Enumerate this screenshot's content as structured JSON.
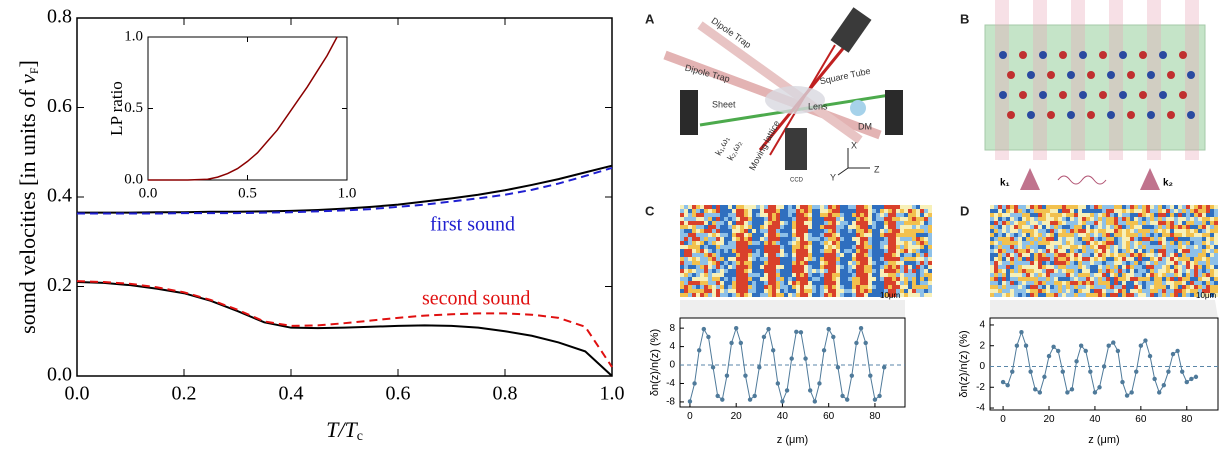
{
  "chart_data": [
    {
      "type": "line",
      "xlabel_parts": [
        "T/T",
        "c"
      ],
      "ylabel_parts": [
        "sound velocities [in units of ",
        "v",
        "F",
        "]"
      ],
      "x": [
        0,
        0.05,
        0.1,
        0.15,
        0.2,
        0.25,
        0.3,
        0.35,
        0.4,
        0.45,
        0.5,
        0.55,
        0.6,
        0.65,
        0.7,
        0.75,
        0.8,
        0.85,
        0.9,
        0.95,
        1.0
      ],
      "series": [
        {
          "color": "#000000",
          "dash": false,
          "values": [
            0.365,
            0.365,
            0.365,
            0.366,
            0.366,
            0.367,
            0.367,
            0.368,
            0.369,
            0.371,
            0.374,
            0.378,
            0.383,
            0.39,
            0.397,
            0.405,
            0.415,
            0.427,
            0.44,
            0.455,
            0.47
          ]
        },
        {
          "color": "#1f1fd0",
          "dash": true,
          "values": [
            0.363,
            0.363,
            0.363,
            0.363,
            0.364,
            0.364,
            0.364,
            0.365,
            0.366,
            0.368,
            0.37,
            0.373,
            0.378,
            0.383,
            0.39,
            0.397,
            0.405,
            0.416,
            0.43,
            0.447,
            0.465
          ]
        },
        {
          "color": "#000000",
          "dash": false,
          "values": [
            0.21,
            0.208,
            0.203,
            0.195,
            0.185,
            0.168,
            0.145,
            0.12,
            0.108,
            0.107,
            0.108,
            0.11,
            0.112,
            0.113,
            0.112,
            0.108,
            0.1,
            0.09,
            0.075,
            0.055,
            0.0
          ]
        },
        {
          "color": "#e01010",
          "dash": true,
          "values": [
            0.212,
            0.21,
            0.206,
            0.198,
            0.187,
            0.17,
            0.148,
            0.122,
            0.112,
            0.113,
            0.118,
            0.124,
            0.13,
            0.135,
            0.138,
            0.14,
            0.14,
            0.137,
            0.13,
            0.11,
            0.02
          ]
        }
      ],
      "annotations": [
        {
          "text": "first sound",
          "color": "#1f1fd0"
        },
        {
          "text": "second sound",
          "color": "#e01010"
        }
      ],
      "xlim": [
        0,
        1.0
      ],
      "xticks": [
        {
          "value": 0,
          "label": "0.0"
        },
        0.2,
        0.4,
        0.6,
        0.8,
        {
          "value": 1.0,
          "label": "1.0"
        }
      ],
      "ylim": [
        0,
        0.8
      ],
      "yticks": [
        {
          "value": 0,
          "label": "0.0"
        },
        0.2,
        0.4,
        0.6,
        0.8
      ]
    },
    {
      "type": "line",
      "ylabel": "LP ratio",
      "x": [
        0,
        0.1,
        0.2,
        0.3,
        0.35,
        0.4,
        0.45,
        0.5,
        0.55,
        0.6,
        0.65,
        0.7,
        0.75,
        0.8,
        0.85,
        0.9,
        0.95
      ],
      "series": [
        {
          "color": "#8b0000",
          "dash": false,
          "values": [
            0,
            0,
            0,
            0.005,
            0.02,
            0.045,
            0.08,
            0.13,
            0.19,
            0.27,
            0.35,
            0.45,
            0.55,
            0.65,
            0.76,
            0.87,
            1.0
          ]
        }
      ],
      "xlim": [
        0,
        1.0
      ],
      "xticks": [
        {
          "value": 0,
          "label": "0.0"
        },
        0.5,
        {
          "value": 1.0,
          "label": "1.0"
        }
      ],
      "ylim": [
        0,
        1.0
      ],
      "yticks": [
        {
          "value": 0,
          "label": "0.0"
        },
        0.5,
        {
          "value": 1.0,
          "label": "1.0"
        }
      ]
    },
    {
      "type": "line",
      "panel": "C",
      "xlabel": "z (μm)",
      "ylabel": "δn(z)/n(z) (%)",
      "markers": true,
      "zero_line": true,
      "x": [
        0,
        2,
        4,
        6,
        8,
        10,
        12,
        14,
        16,
        18,
        20,
        22,
        24,
        26,
        28,
        30,
        32,
        34,
        36,
        38,
        40,
        42,
        44,
        46,
        48,
        50,
        52,
        54,
        56,
        58,
        60,
        62,
        64,
        66,
        68,
        70,
        72,
        74,
        76,
        78,
        80,
        82,
        84
      ],
      "series": [
        {
          "color": "#4f7a9a",
          "dash": false,
          "values": [
            -7.9,
            -4.0,
            3.2,
            7.8,
            6.1,
            -0.5,
            -6.7,
            -7.5,
            -2.3,
            4.8,
            8.0,
            4.8,
            -2.3,
            -7.5,
            -6.7,
            -0.5,
            6.1,
            7.8,
            3.2,
            -4.0,
            -7.9,
            -5.5,
            1.4,
            7.2,
            7.1,
            1.4,
            -5.5,
            -7.9,
            -4.0,
            3.2,
            7.8,
            6.1,
            -0.5,
            -6.7,
            -7.5,
            -2.3,
            4.8,
            8.0,
            4.8,
            -2.3,
            -7.5,
            -6.7,
            -0.5
          ]
        }
      ],
      "xlim": [
        -4.3,
        93
      ],
      "xticks": [
        0,
        20,
        40,
        60,
        80
      ],
      "ylim": [
        -9.1,
        10.2
      ],
      "yticks": [
        -8,
        -4,
        0,
        4,
        8
      ]
    },
    {
      "type": "line",
      "panel": "D",
      "xlabel": "z (μm)",
      "ylabel": "δn(z)/n(z) (%)",
      "markers": true,
      "zero_line": true,
      "x": [
        0,
        2,
        4,
        6,
        8,
        10,
        12,
        14,
        16,
        18,
        20,
        22,
        24,
        26,
        28,
        30,
        32,
        34,
        36,
        38,
        40,
        42,
        44,
        46,
        48,
        50,
        52,
        54,
        56,
        58,
        60,
        62,
        64,
        66,
        68,
        70,
        72,
        74,
        76,
        78,
        80,
        82,
        84
      ],
      "series": [
        {
          "color": "#4f7a9a",
          "dash": false,
          "values": [
            -1.5,
            -1.8,
            -0.5,
            2.0,
            3.3,
            2.0,
            -0.5,
            -2.2,
            -2.5,
            -1.0,
            1.0,
            1.9,
            1.5,
            -0.5,
            -2.5,
            -2.2,
            0.5,
            2.0,
            1.5,
            -0.5,
            -2.5,
            -2.0,
            0.0,
            2.0,
            2.3,
            1.5,
            -1.5,
            -2.8,
            -2.5,
            -0.5,
            2.0,
            2.5,
            1.0,
            -1.2,
            -2.5,
            -1.8,
            -0.5,
            1.2,
            1.5,
            -0.5,
            -1.5,
            -1.2,
            -1.0
          ]
        }
      ],
      "xlim": [
        -5.7,
        93.6
      ],
      "xticks": [
        0,
        20,
        40,
        60,
        80
      ],
      "ylim": [
        -4.19,
        4.67
      ],
      "yticks": [
        -4,
        -2,
        0,
        2,
        4
      ]
    }
  ],
  "panels": {
    "A": {
      "letter": "A",
      "labels": [
        "Dipole Trap",
        "Dipole Trap",
        "Square Tube",
        "Sheet",
        "Lens",
        "DM",
        "Moving lattice",
        "k₁,ω₁",
        "k₂,ω₂",
        "CCD",
        "X",
        "Y",
        "Z"
      ]
    },
    "B": {
      "letter": "B",
      "labels": [
        "k₁",
        "k₂"
      ]
    },
    "C": {
      "letter": "C",
      "scale": "10μm"
    },
    "D": {
      "letter": "D",
      "scale": "10μm"
    }
  }
}
